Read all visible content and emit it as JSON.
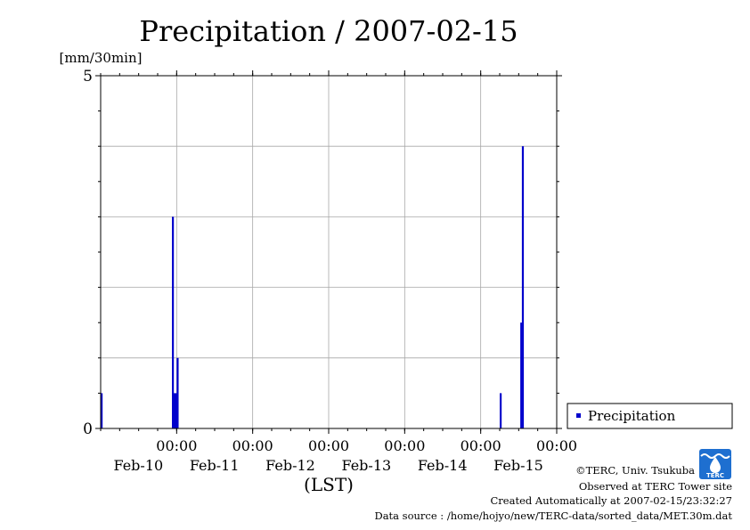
{
  "chart_data": {
    "type": "bar",
    "title": "Precipitation / 2007-02-15",
    "ylabel": "[mm/30min]",
    "xlabel": "(LST)",
    "ylim": [
      0,
      5
    ],
    "y_ticks": [
      0,
      5
    ],
    "y_gridlines": [
      1,
      2,
      3,
      4
    ],
    "xlim": [
      "2007-02-09T00:00",
      "2007-02-15T00:00"
    ],
    "x_ticks": [
      {
        "time": "2007-02-10T00:00",
        "time_label": "00:00",
        "date_label": "Feb-10"
      },
      {
        "time": "2007-02-11T00:00",
        "time_label": "00:00",
        "date_label": "Feb-11"
      },
      {
        "time": "2007-02-12T00:00",
        "time_label": "00:00",
        "date_label": "Feb-12"
      },
      {
        "time": "2007-02-13T00:00",
        "time_label": "00:00",
        "date_label": "Feb-13"
      },
      {
        "time": "2007-02-14T00:00",
        "time_label": "00:00",
        "date_label": "Feb-14"
      },
      {
        "time": "2007-02-15T00:00",
        "time_label": "00:00",
        "date_label": "Feb-15"
      }
    ],
    "grid": true,
    "legend_position": "right",
    "series": [
      {
        "name": "Precipitation",
        "color": "#0000cc",
        "points": [
          {
            "time": "2007-02-09T00:00",
            "value": 0.5
          },
          {
            "time": "2007-02-09T22:30",
            "value": 3.0
          },
          {
            "time": "2007-02-09T23:00",
            "value": 0.5
          },
          {
            "time": "2007-02-09T23:30",
            "value": 0.5
          },
          {
            "time": "2007-02-10T00:00",
            "value": 1.0
          },
          {
            "time": "2007-02-14T06:00",
            "value": 0.5
          },
          {
            "time": "2007-02-14T12:30",
            "value": 1.5
          },
          {
            "time": "2007-02-14T13:00",
            "value": 4.0
          }
        ]
      }
    ]
  },
  "credits": {
    "copyright": "©TERC, Univ. Tsukuba",
    "observed": "Observed at TERC Tower site",
    "created": "Created Automatically at 2007-02-15/23:32:27",
    "source": "Data source : /home/hojyo/new/TERC-data/sorted_data/MET.30m.dat"
  },
  "logo": {
    "text": "TERC",
    "color": "#1e6fd0"
  }
}
